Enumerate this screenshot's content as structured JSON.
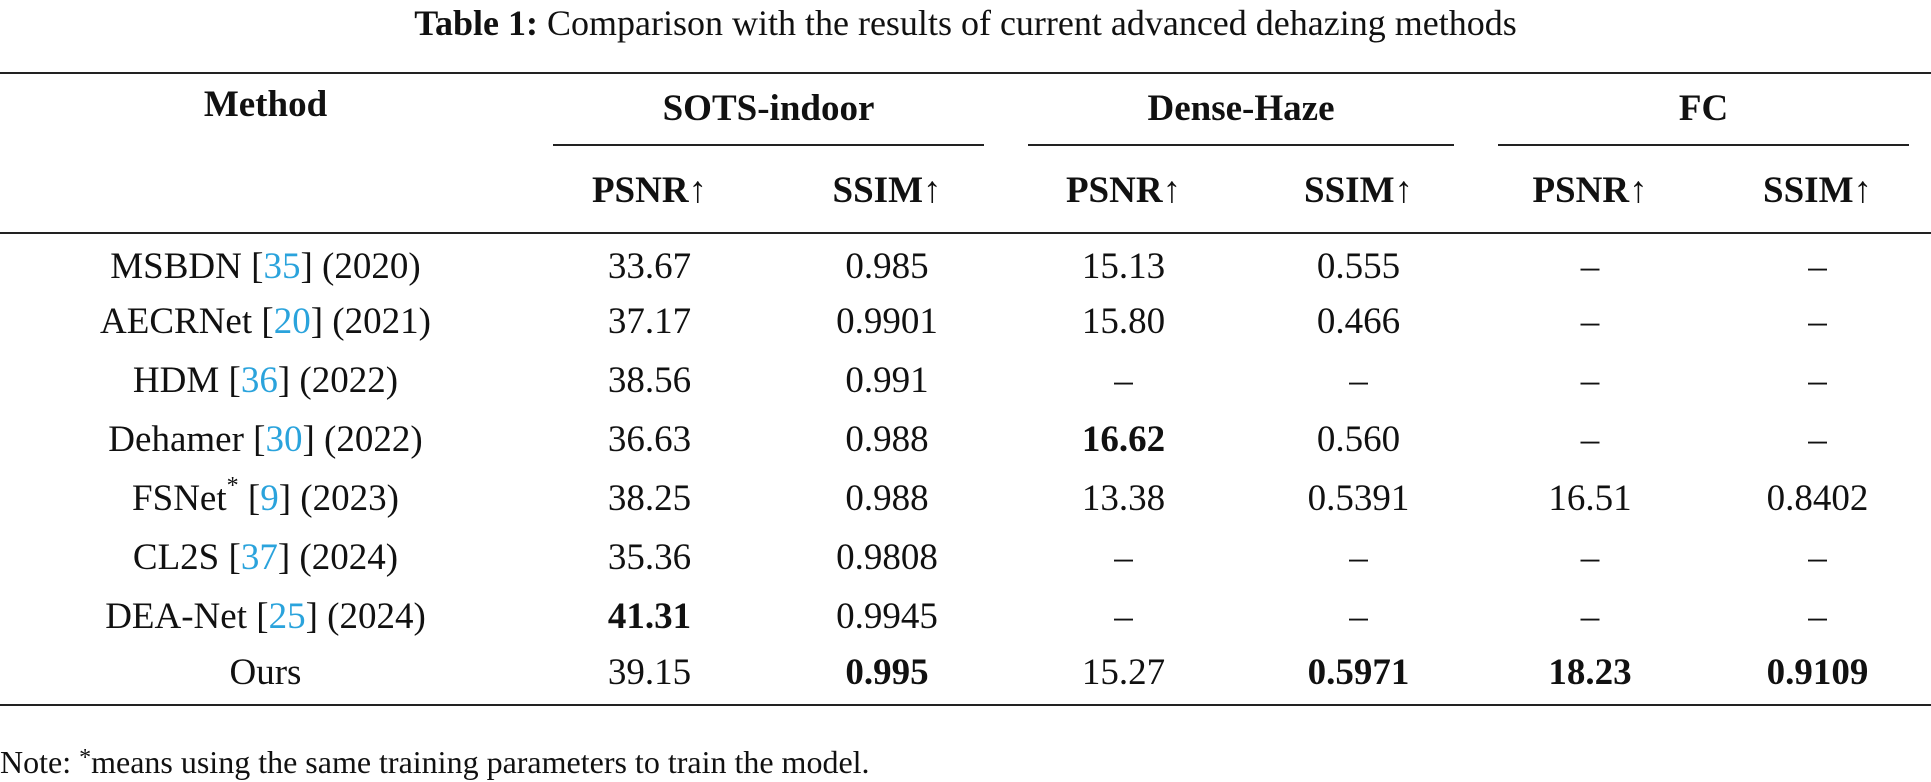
{
  "caption": {
    "label": "Table 1:",
    "text": " Comparison with the results of current advanced dehazing methods"
  },
  "colors": {
    "link": "#2aa3dc",
    "text": "#111111"
  },
  "header": {
    "method": "Method",
    "groups": [
      "SOTS-indoor",
      "Dense-Haze",
      "FC"
    ],
    "metrics": [
      "PSNR↑",
      "SSIM↑",
      "PSNR↑",
      "SSIM↑",
      "PSNR↑",
      "SSIM↑"
    ]
  },
  "rows": [
    {
      "name": "MSBDN",
      "star": "",
      "ref": "35",
      "year": "(2020)",
      "cells": [
        {
          "v": "33.67",
          "bold": false
        },
        {
          "v": "0.985",
          "bold": false
        },
        {
          "v": "15.13",
          "bold": false
        },
        {
          "v": "0.555",
          "bold": false
        },
        {
          "v": "–",
          "bold": false
        },
        {
          "v": "–",
          "bold": false
        }
      ]
    },
    {
      "name": "AECRNet",
      "star": "",
      "ref": "20",
      "year": "(2021)",
      "cells": [
        {
          "v": "37.17",
          "bold": false
        },
        {
          "v": "0.9901",
          "bold": false
        },
        {
          "v": "15.80",
          "bold": false
        },
        {
          "v": "0.466",
          "bold": false
        },
        {
          "v": "–",
          "bold": false
        },
        {
          "v": "–",
          "bold": false
        }
      ]
    },
    {
      "name": "HDM",
      "star": "",
      "ref": "36",
      "year": "(2022)",
      "cells": [
        {
          "v": "38.56",
          "bold": false
        },
        {
          "v": "0.991",
          "bold": false
        },
        {
          "v": "–",
          "bold": false
        },
        {
          "v": "–",
          "bold": false
        },
        {
          "v": "–",
          "bold": false
        },
        {
          "v": "–",
          "bold": false
        }
      ]
    },
    {
      "name": "Dehamer",
      "star": "",
      "ref": "30",
      "year": "(2022)",
      "cells": [
        {
          "v": "36.63",
          "bold": false
        },
        {
          "v": "0.988",
          "bold": false
        },
        {
          "v": "16.62",
          "bold": true
        },
        {
          "v": "0.560",
          "bold": false
        },
        {
          "v": "–",
          "bold": false
        },
        {
          "v": "–",
          "bold": false
        }
      ]
    },
    {
      "name": "FSNet",
      "star": "*",
      "ref": "9",
      "year": "(2023)",
      "cells": [
        {
          "v": "38.25",
          "bold": false
        },
        {
          "v": "0.988",
          "bold": false
        },
        {
          "v": "13.38",
          "bold": false
        },
        {
          "v": "0.5391",
          "bold": false
        },
        {
          "v": "16.51",
          "bold": false
        },
        {
          "v": "0.8402",
          "bold": false
        }
      ]
    },
    {
      "name": "CL2S",
      "star": "",
      "ref": "37",
      "year": "(2024)",
      "cells": [
        {
          "v": "35.36",
          "bold": false
        },
        {
          "v": "0.9808",
          "bold": false
        },
        {
          "v": "–",
          "bold": false
        },
        {
          "v": "–",
          "bold": false
        },
        {
          "v": "–",
          "bold": false
        },
        {
          "v": "–",
          "bold": false
        }
      ]
    },
    {
      "name": "DEA-Net",
      "star": "",
      "ref": "25",
      "year": "(2024)",
      "cells": [
        {
          "v": "41.31",
          "bold": true
        },
        {
          "v": "0.9945",
          "bold": false
        },
        {
          "v": "–",
          "bold": false
        },
        {
          "v": "–",
          "bold": false
        },
        {
          "v": "–",
          "bold": false
        },
        {
          "v": "–",
          "bold": false
        }
      ]
    },
    {
      "name": "Ours",
      "star": "",
      "ref": "",
      "year": "",
      "cells": [
        {
          "v": "39.15",
          "bold": false
        },
        {
          "v": "0.995",
          "bold": true
        },
        {
          "v": "15.27",
          "bold": false
        },
        {
          "v": "0.5971",
          "bold": true
        },
        {
          "v": "18.23",
          "bold": true
        },
        {
          "v": "0.9109",
          "bold": true
        }
      ]
    }
  ],
  "note": {
    "prefix": "Note: ",
    "star": "*",
    "text": "means using the same training parameters to train the model."
  }
}
